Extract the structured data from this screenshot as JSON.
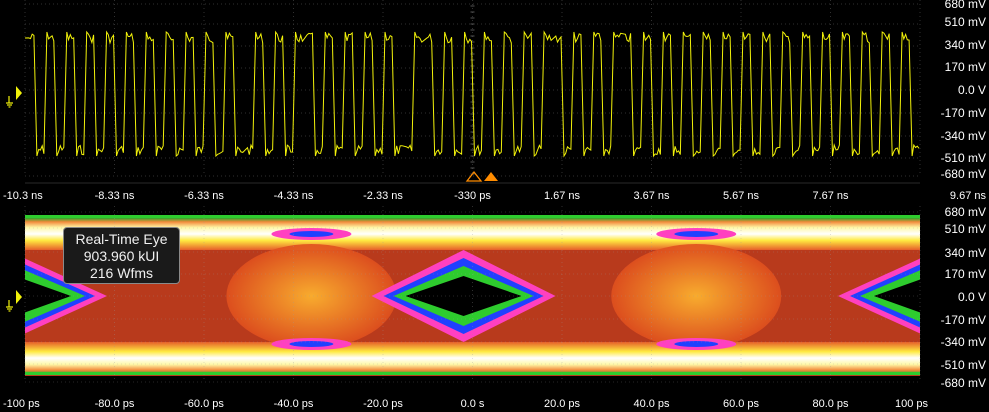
{
  "top_pane": {
    "x_ticks": [
      "-10.3 ns",
      "-8.33 ns",
      "-6.33 ns",
      "-4.33 ns",
      "-2.33 ns",
      "-330 ps",
      "1.67 ns",
      "3.67 ns",
      "5.67 ns",
      "7.67 ns",
      "9.67 ns"
    ],
    "y_ticks": [
      "680 mV",
      "510 mV",
      "340 mV",
      "170 mV",
      "0.0 V",
      "-170 mV",
      "-340 mV",
      "-510 mV",
      "-680 mV"
    ],
    "trace_color": "#f2f20a",
    "bits": [
      1,
      0,
      1,
      0,
      1,
      0,
      1,
      0,
      1,
      0,
      1,
      0,
      1,
      0,
      1,
      0,
      1,
      0,
      1,
      0,
      1,
      0,
      0,
      1,
      0,
      1,
      0,
      1,
      1,
      0,
      1,
      0,
      1,
      0,
      1,
      0,
      1,
      0,
      0,
      1,
      1,
      0,
      1,
      0,
      1,
      0,
      1,
      0,
      1,
      0,
      1,
      0,
      1,
      1,
      0,
      1,
      0,
      1,
      0,
      1,
      1,
      0,
      1,
      0,
      1,
      0,
      1,
      0,
      1,
      0,
      1,
      0,
      1,
      0,
      1,
      0,
      1,
      0,
      1,
      0,
      1,
      0,
      1,
      0,
      1,
      0,
      1,
      0,
      1,
      0
    ]
  },
  "bottom_pane": {
    "x_ticks": [
      "-100 ps",
      "-80.0 ps",
      "-60.0 ps",
      "-40.0 ps",
      "-20.0 ps",
      "0.0 s",
      "20.0 ps",
      "40.0 ps",
      "60.0 ps",
      "80.0 ps",
      "100 ps"
    ],
    "y_ticks": [
      "680 mV",
      "510 mV",
      "340 mV",
      "170 mV",
      "0.0 V",
      "-170 mV",
      "-340 mV",
      "-510 mV",
      "-680 mV"
    ],
    "info": {
      "title": "Real-Time Eye",
      "ui_count": "903.960 kUI",
      "waveforms": "216 Wfms"
    }
  },
  "ground_marker_color": "#f2f20a",
  "trigger_marker_color": "#ff8c00"
}
